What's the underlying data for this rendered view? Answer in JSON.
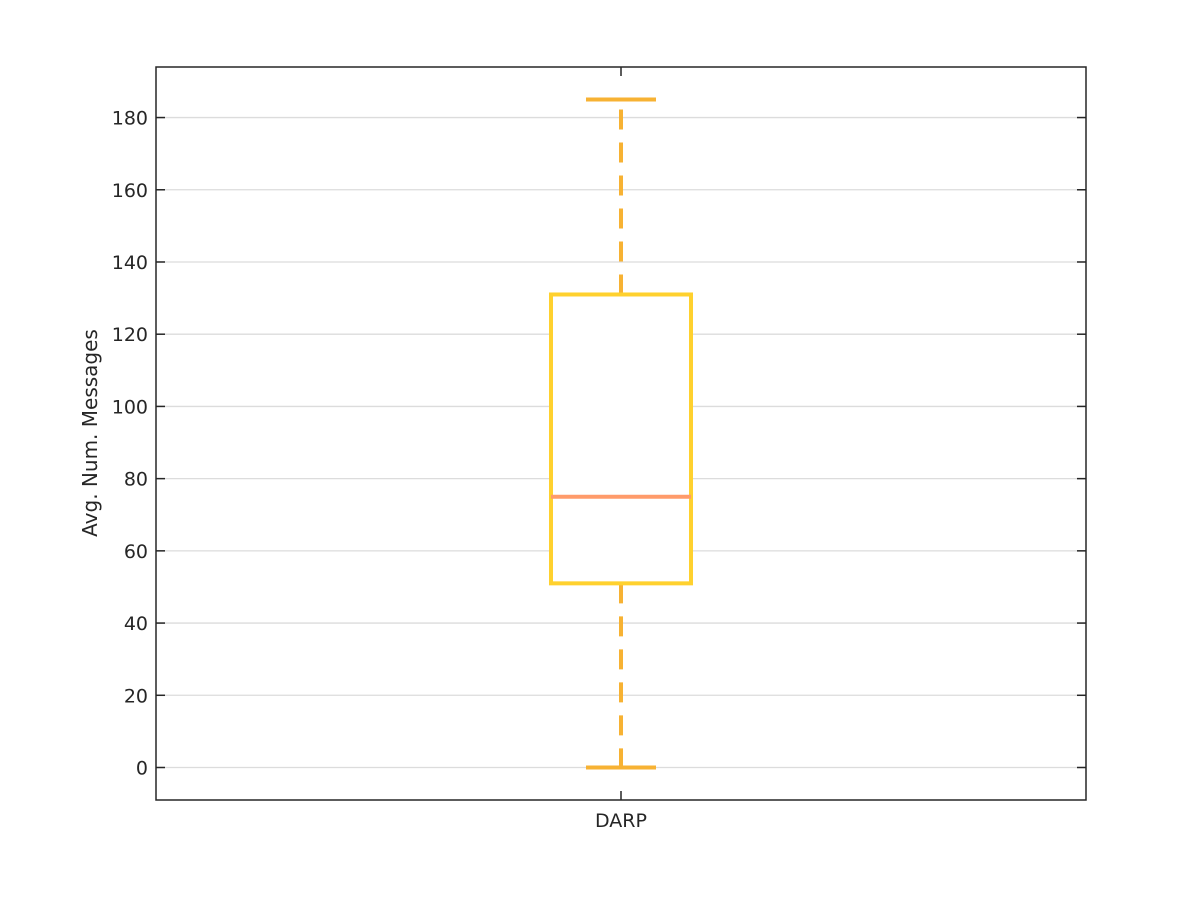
{
  "chart_data": {
    "type": "boxplot",
    "title": "",
    "xlabel": "",
    "ylabel": "Avg. Num. Messages",
    "categories": [
      "DARP"
    ],
    "boxes": [
      {
        "category": "DARP",
        "whisker_low": 0,
        "q1": 51,
        "median": 75,
        "q3": 131,
        "whisker_high": 185
      }
    ],
    "ylim": [
      -9,
      194
    ],
    "yticks": [
      0,
      20,
      40,
      60,
      80,
      100,
      120,
      140,
      160,
      180
    ],
    "grid": "horizontal",
    "legend": "none",
    "colors": {
      "box": "#FFD12E",
      "median": "#FF9B6A",
      "whisker": "#F7B233",
      "axis": "#262626",
      "grid": "#DCDCDC"
    }
  }
}
